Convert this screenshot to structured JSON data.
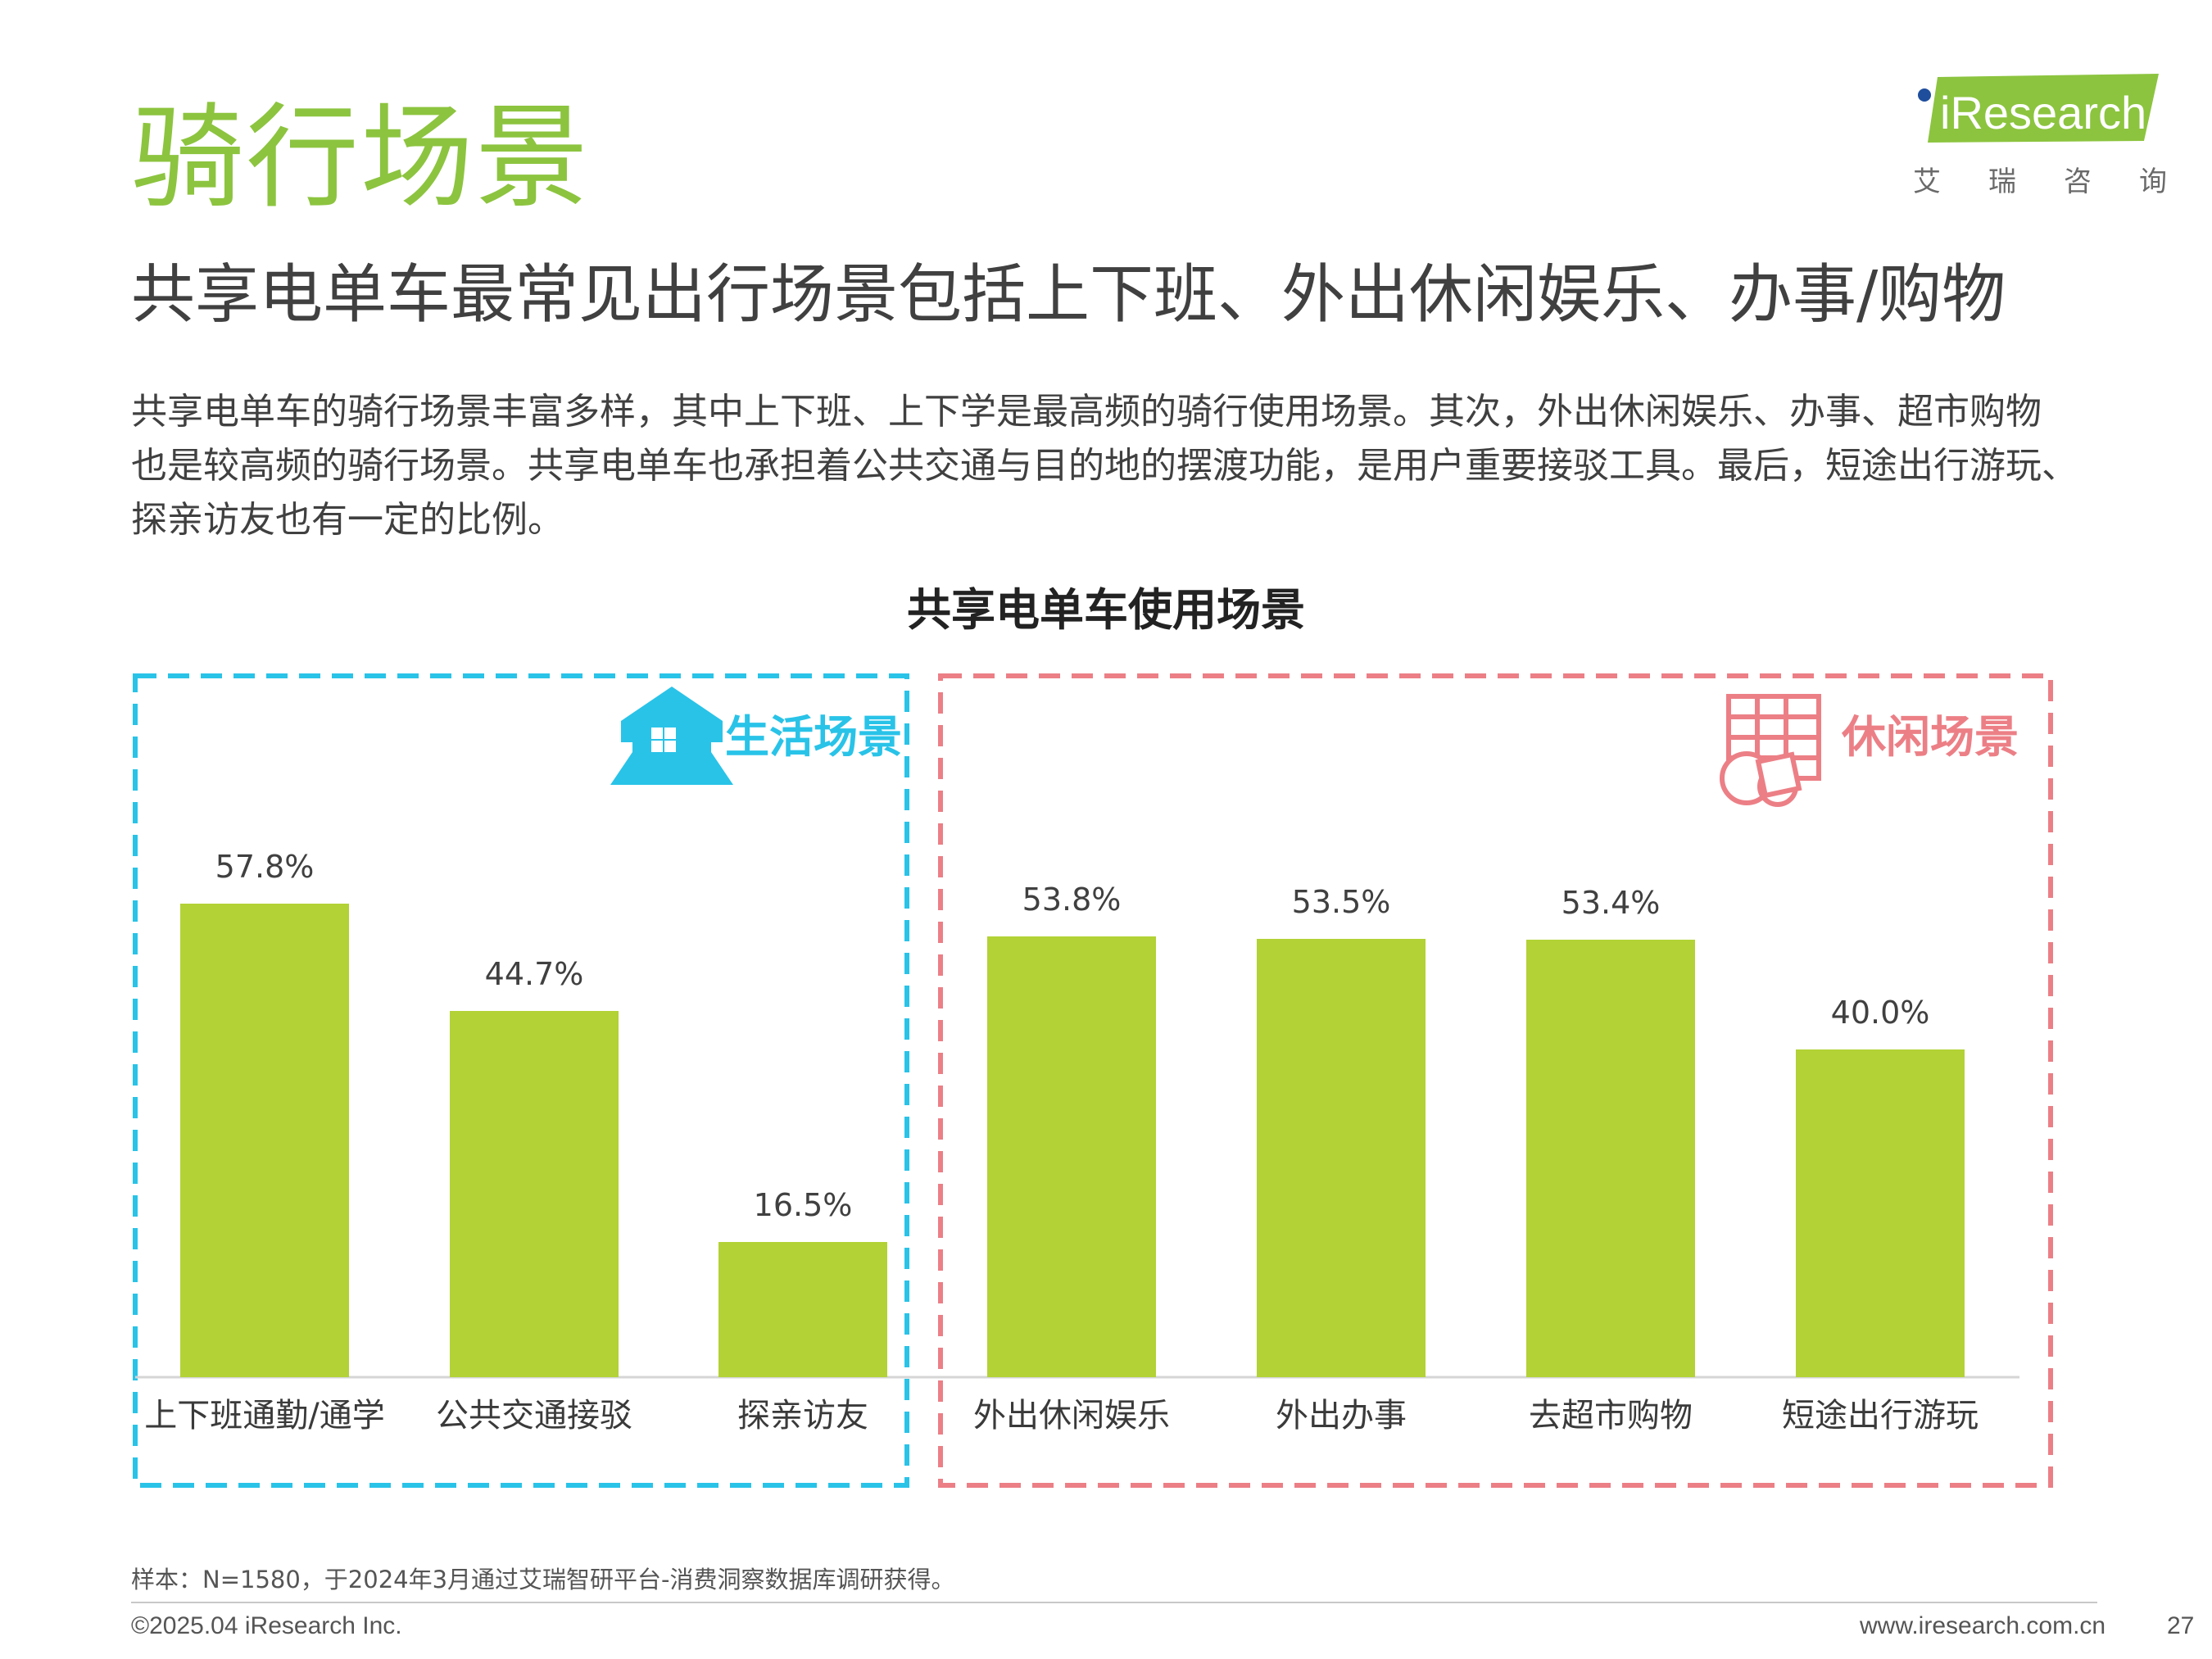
{
  "page": {
    "title": "骑行场景",
    "subtitle": "共享电单车最常见出行场景包括上下班、外出休闲娱乐、办事/购物",
    "body_lines": [
      "共享电单车的骑行场景丰富多样，其中上下班、上下学是最高频的骑行使用场景。其次，外出休闲娱乐、办事、超市购物",
      "也是较高频的骑行场景。共享电单车也承担着公共交通与目的地的摆渡功能，是用户重要接驳工具。最后，短途出行游玩、",
      "探亲访友也有一定的比例。"
    ]
  },
  "logo": {
    "text": "iResearch",
    "cn_chars": [
      "艾",
      "瑞",
      "咨",
      "询"
    ]
  },
  "groups": {
    "life": {
      "label": "生活场景",
      "color": "#29c3e8",
      "icon": "house-icon"
    },
    "leisure": {
      "label": "休闲场景",
      "color": "#ec7f86",
      "icon": "shopping-icon"
    }
  },
  "chart_data": {
    "type": "bar",
    "title": "共享电单车使用场景",
    "categories": [
      "上下班通勤/通学",
      "公共交通接驳",
      "探亲访友",
      "外出休闲娱乐",
      "外出办事",
      "去超市购物",
      "短途出行游玩"
    ],
    "values": [
      57.8,
      44.7,
      16.5,
      53.8,
      53.5,
      53.4,
      40.0
    ],
    "value_labels": [
      "57.8%",
      "44.7%",
      "16.5%",
      "53.8%",
      "53.5%",
      "53.4%",
      "40.0%"
    ],
    "groups": [
      [
        "上下班通勤/通学",
        "公共交通接驳",
        "探亲访友"
      ],
      [
        "外出休闲娱乐",
        "外出办事",
        "去超市购物",
        "短途出行游玩"
      ]
    ],
    "unit": "%",
    "ylim": [
      0,
      60
    ],
    "bar_color": "#b2d235",
    "grid": false,
    "legend": "none"
  },
  "footer": {
    "sample_note": "样本：N=1580，于2024年3月通过艾瑞智研平台-消费洞察数据库调研获得。",
    "copyright": "©2025.04 iResearch Inc.",
    "website": "www.iresearch.com.cn",
    "page_number": "27"
  }
}
